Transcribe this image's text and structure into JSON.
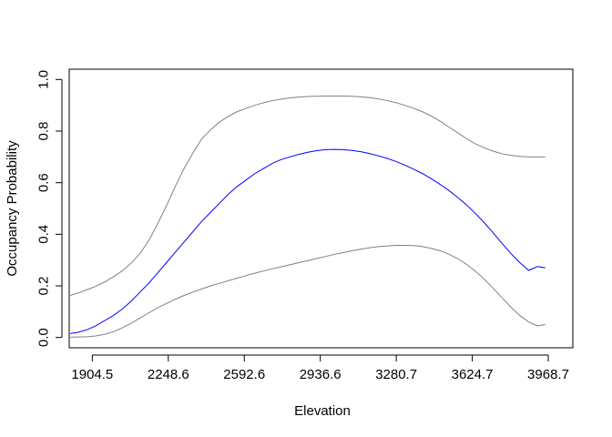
{
  "chart_data": {
    "type": "line",
    "title": "",
    "xlabel": "Elevation",
    "ylabel": "Occupancy Probability",
    "xlim": [
      1800,
      4080
    ],
    "ylim": [
      -0.04,
      1.04
    ],
    "x_ticks": [
      1904.5,
      2248.6,
      2592.6,
      2936.6,
      3280.7,
      3624.7,
      3968.7
    ],
    "x_tick_labels": [
      "1904.5",
      "2248.6",
      "2592.6",
      "2936.6",
      "3280.7",
      "3624.7",
      "3968.7"
    ],
    "y_ticks": [
      0.0,
      0.2,
      0.4,
      0.6,
      0.8,
      1.0
    ],
    "y_tick_labels": [
      "0.0",
      "0.2",
      "0.4",
      "0.6",
      "0.8",
      "1.0"
    ],
    "grid": false,
    "legend": "none",
    "series": [
      {
        "color": "#0000ff",
        "x": [
          1805,
          1840,
          1880,
          1920,
          1960,
          2000,
          2040,
          2080,
          2120,
          2160,
          2200,
          2240,
          2280,
          2320,
          2360,
          2400,
          2440,
          2480,
          2520,
          2560,
          2600,
          2640,
          2680,
          2720,
          2760,
          2800,
          2840,
          2880,
          2920,
          2960,
          3000,
          3040,
          3080,
          3120,
          3160,
          3200,
          3240,
          3280,
          3320,
          3360,
          3400,
          3440,
          3480,
          3520,
          3560,
          3600,
          3640,
          3680,
          3720,
          3760,
          3800,
          3840,
          3880,
          3920,
          3955
        ],
        "values": [
          0.015,
          0.02,
          0.03,
          0.045,
          0.065,
          0.085,
          0.11,
          0.14,
          0.175,
          0.21,
          0.25,
          0.29,
          0.33,
          0.37,
          0.41,
          0.45,
          0.485,
          0.52,
          0.555,
          0.585,
          0.61,
          0.635,
          0.655,
          0.675,
          0.69,
          0.7,
          0.71,
          0.718,
          0.724,
          0.728,
          0.729,
          0.728,
          0.725,
          0.72,
          0.713,
          0.704,
          0.694,
          0.682,
          0.668,
          0.652,
          0.635,
          0.615,
          0.593,
          0.569,
          0.542,
          0.513,
          0.48,
          0.444,
          0.405,
          0.364,
          0.325,
          0.29,
          0.26,
          0.275,
          0.27
        ]
      },
      {
        "color": "#808080",
        "x": [
          1805,
          1840,
          1880,
          1920,
          1960,
          2000,
          2040,
          2080,
          2120,
          2160,
          2200,
          2240,
          2280,
          2320,
          2360,
          2400,
          2440,
          2480,
          2520,
          2560,
          2600,
          2640,
          2680,
          2720,
          2760,
          2800,
          2840,
          2880,
          2920,
          2960,
          3000,
          3040,
          3080,
          3120,
          3160,
          3200,
          3240,
          3280,
          3320,
          3360,
          3400,
          3440,
          3480,
          3520,
          3560,
          3600,
          3640,
          3680,
          3720,
          3760,
          3800,
          3840,
          3880,
          3920,
          3955
        ],
        "values": [
          0.163,
          0.172,
          0.185,
          0.198,
          0.215,
          0.235,
          0.258,
          0.288,
          0.325,
          0.375,
          0.44,
          0.51,
          0.585,
          0.655,
          0.715,
          0.77,
          0.805,
          0.835,
          0.857,
          0.875,
          0.888,
          0.9,
          0.91,
          0.918,
          0.924,
          0.929,
          0.932,
          0.934,
          0.935,
          0.936,
          0.936,
          0.936,
          0.935,
          0.933,
          0.93,
          0.925,
          0.918,
          0.91,
          0.9,
          0.888,
          0.875,
          0.858,
          0.838,
          0.815,
          0.793,
          0.77,
          0.75,
          0.735,
          0.722,
          0.712,
          0.706,
          0.702,
          0.7,
          0.7,
          0.7
        ]
      },
      {
        "color": "#808080",
        "x": [
          1805,
          1840,
          1880,
          1920,
          1960,
          2000,
          2040,
          2080,
          2120,
          2160,
          2200,
          2240,
          2280,
          2320,
          2360,
          2400,
          2440,
          2480,
          2520,
          2560,
          2600,
          2640,
          2680,
          2720,
          2760,
          2800,
          2840,
          2880,
          2920,
          2960,
          3000,
          3040,
          3080,
          3120,
          3160,
          3200,
          3240,
          3280,
          3320,
          3360,
          3400,
          3440,
          3480,
          3520,
          3560,
          3600,
          3640,
          3680,
          3720,
          3760,
          3800,
          3840,
          3880,
          3920,
          3955
        ],
        "values": [
          0.001,
          0.002,
          0.003,
          0.006,
          0.012,
          0.022,
          0.037,
          0.055,
          0.075,
          0.095,
          0.115,
          0.132,
          0.148,
          0.163,
          0.176,
          0.188,
          0.2,
          0.21,
          0.22,
          0.23,
          0.24,
          0.249,
          0.258,
          0.266,
          0.274,
          0.282,
          0.29,
          0.298,
          0.306,
          0.314,
          0.322,
          0.329,
          0.336,
          0.342,
          0.348,
          0.352,
          0.355,
          0.357,
          0.357,
          0.356,
          0.352,
          0.345,
          0.336,
          0.322,
          0.305,
          0.283,
          0.256,
          0.225,
          0.19,
          0.153,
          0.117,
          0.085,
          0.06,
          0.045,
          0.05
        ]
      }
    ]
  }
}
